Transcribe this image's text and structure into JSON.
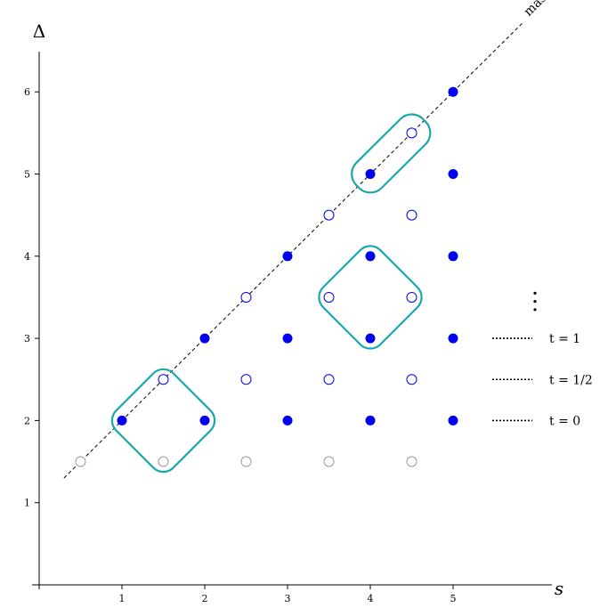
{
  "chart_data": {
    "type": "scatter",
    "title": "",
    "xlabel": "s",
    "ylabel": "Δ",
    "xlim": [
      -0.05,
      6.1
    ],
    "ylim": [
      -0.05,
      6.5
    ],
    "x_ticks": [
      "1",
      "2",
      "3",
      "4",
      "5"
    ],
    "y_ticks": [
      "1",
      "2",
      "3",
      "4",
      "5",
      "6"
    ],
    "grid": false,
    "colors": {
      "filled": "#0000ee",
      "open_blue": "#0000ee",
      "open_gray": "#999999",
      "outline": "#1aa9a9",
      "guide": "#000000"
    },
    "diagonal_label": "massless",
    "diagonal_line": {
      "from": [
        0.3,
        1.3
      ],
      "to": [
        5.85,
        6.85
      ]
    },
    "series": [
      {
        "style": "filled",
        "points": [
          [
            1,
            2
          ],
          [
            2,
            2
          ],
          [
            3,
            2
          ],
          [
            4,
            2
          ],
          [
            5,
            2
          ],
          [
            2,
            3
          ],
          [
            3,
            3
          ],
          [
            4,
            3
          ],
          [
            5,
            3
          ],
          [
            3,
            4
          ],
          [
            4,
            4
          ],
          [
            5,
            4
          ],
          [
            4,
            5
          ],
          [
            5,
            5
          ],
          [
            5,
            6
          ]
        ]
      },
      {
        "style": "open_blue",
        "points": [
          [
            1.5,
            2.5
          ],
          [
            2.5,
            2.5
          ],
          [
            3.5,
            2.5
          ],
          [
            4.5,
            2.5
          ],
          [
            2.5,
            3.5
          ],
          [
            3.5,
            3.5
          ],
          [
            4.5,
            3.5
          ],
          [
            3.5,
            4.5
          ],
          [
            4.5,
            4.5
          ],
          [
            4.5,
            5.5
          ]
        ]
      },
      {
        "style": "open_gray",
        "points": [
          [
            0.5,
            1.5
          ],
          [
            1.5,
            1.5
          ],
          [
            2.5,
            1.5
          ],
          [
            3.5,
            1.5
          ],
          [
            4.5,
            1.5
          ]
        ]
      }
    ],
    "groups": [
      {
        "shape": "diamond",
        "center": [
          1.5,
          2
        ],
        "half_extent": 0.7
      },
      {
        "shape": "diamond",
        "center": [
          4,
          3.5
        ],
        "half_extent": 0.7
      },
      {
        "shape": "capsule",
        "from": [
          4,
          5
        ],
        "to": [
          4.5,
          5.5
        ]
      }
    ],
    "legend": {
      "placement": "right",
      "entries": [
        {
          "label": "t = 1",
          "y": 3
        },
        {
          "label": "t = 1/2",
          "y": 2.5
        },
        {
          "label": "t = 0",
          "y": 2
        }
      ],
      "more": "⋮"
    }
  }
}
